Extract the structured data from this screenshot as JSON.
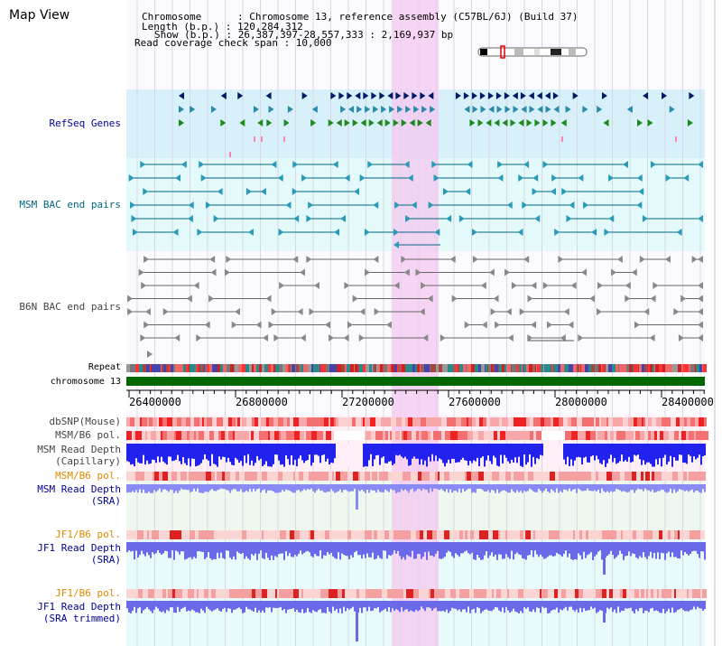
{
  "view_title": "Map View",
  "info": {
    "chromosome": "Chromosome      : Chromosome 13, reference assembly (C57BL/6J) (Build 37)",
    "length": "Length (b.p.) : 120,284,312",
    "show": "Show (b.p.) : 26,387,397-28,557,333 : 2,169,937 bp",
    "span": "Read coverage check span : 10,000"
  },
  "tracks": {
    "refseq": "RefSeq Genes",
    "msm_bac": "MSM BAC end pairs",
    "b6n_bac": "B6N BAC end pairs",
    "repeat": "Repeat",
    "chromosome": "chromosome 13",
    "dbsnp": "dbSNP(Mouse)",
    "msm_b6_pol_1": "MSM/B6 pol.",
    "msm_depth_cap_1": "MSM Read Depth",
    "msm_depth_cap_2": "(Capillary)",
    "msm_b6_pol_2": "MSM/B6 pol.",
    "msm_depth_sra_1": "MSM Read Depth",
    "msm_depth_sra_2": "(SRA)",
    "jf1_b6_pol_1": "JF1/B6 pol.",
    "jf1_depth_1": "JF1 Read Depth",
    "jf1_depth_2": "(SRA)",
    "jf1_b6_pol_2": "JF1/B6 pol.",
    "jf1_trim_1": "JF1 Read Depth",
    "jf1_trim_2": "(SRA trimmed)"
  },
  "axis": {
    "ticks": [
      "26400000",
      "26800000",
      "27200000",
      "27600000",
      "28000000",
      "28400000"
    ]
  },
  "colors": {
    "label_blue": "#000099",
    "label_teal": "#006680",
    "label_gray": "#444444",
    "label_orange": "#e08a00",
    "highlight": "#f4c8f0",
    "refseq_bg": "#d8f0fa",
    "bac_bg": "#e4fafa",
    "chromosome_bar": "#006600"
  }
}
